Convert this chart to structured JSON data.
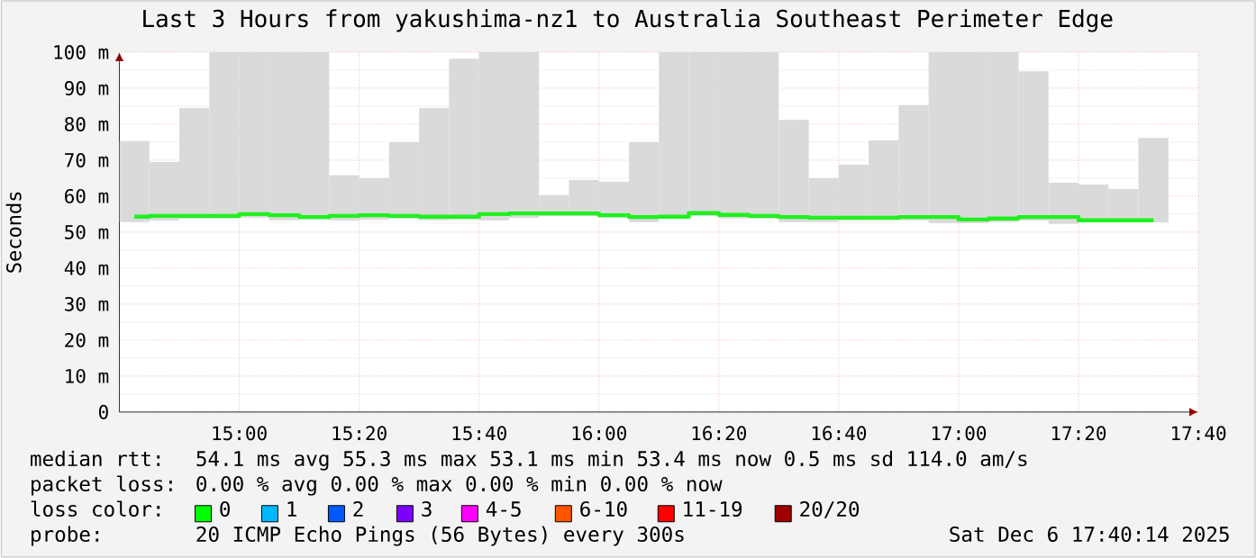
{
  "chart_data": {
    "type": "bar",
    "title": "Last 3 Hours from yakushima-nz1 to Australia Southeast Perimeter Edge",
    "ylabel": "Seconds",
    "x": [
      14.7083,
      14.7917,
      14.875,
      14.9583,
      15.0417,
      15.125,
      15.2083,
      15.2917,
      15.375,
      15.4583,
      15.5417,
      15.625,
      15.7083,
      15.7917,
      15.875,
      15.9583,
      16.0417,
      16.125,
      16.2083,
      16.2917,
      16.375,
      16.4583,
      16.5417,
      16.625,
      16.7083,
      16.7917,
      16.875,
      16.9583,
      17.0417,
      17.125,
      17.2083,
      17.2917,
      17.375,
      17.4583,
      17.5417
    ],
    "series": [
      {
        "color": "#dadada",
        "base": [
          52.8,
          53.2,
          53.7,
          53.7,
          54,
          53.3,
          53.5,
          53.2,
          53.5,
          53.7,
          53.3,
          53.5,
          53.2,
          54,
          54.5,
          54.5,
          54,
          52.8,
          53.7,
          54.5,
          53.8,
          53.7,
          52.8,
          52.8,
          53.2,
          53.3,
          53.3,
          52.5,
          52.5,
          52.8,
          53.2,
          52.3,
          52.7,
          52.7,
          52.7
        ],
        "values": [
          22.5,
          16.3,
          30.8,
          46.3,
          46,
          46.7,
          46.5,
          12.6,
          11.5,
          21.3,
          31.2,
          44.7,
          46.8,
          46,
          5.8,
          10,
          10,
          22.2,
          46.3,
          45.5,
          46.2,
          46.3,
          28.4,
          12.2,
          15.5,
          22.2,
          32,
          47.5,
          47.5,
          47.2,
          41.5,
          11.4,
          10.5,
          9.3,
          23.5
        ]
      },
      {
        "type": "step",
        "color": "#20f020",
        "values": [
          54.3,
          54.5,
          54.5,
          54.5,
          55,
          54.7,
          54.2,
          54.5,
          54.7,
          54.5,
          54.3,
          54.3,
          55,
          55.2,
          55.2,
          55.2,
          54.7,
          54.2,
          54.3,
          55.3,
          54.8,
          54.5,
          54.2,
          54,
          54,
          54,
          54.2,
          54.2,
          53.5,
          53.8,
          54.2,
          54.2,
          53.3,
          53.3,
          53.3
        ]
      }
    ],
    "xlim": [
      14.6667,
      17.6667
    ],
    "xticks": [
      {
        "value": 15,
        "label": "15:00"
      },
      {
        "value": 15.3333,
        "label": "15:20"
      },
      {
        "value": 15.6667,
        "label": "15:40"
      },
      {
        "value": 16,
        "label": "16:00"
      },
      {
        "value": 16.3333,
        "label": "16:20"
      },
      {
        "value": 16.6667,
        "label": "16:40"
      },
      {
        "value": 17,
        "label": "17:00"
      },
      {
        "value": 17.3333,
        "label": "17:20"
      },
      {
        "value": 17.6667,
        "label": "17:40"
      }
    ],
    "ylim": [
      0,
      100
    ],
    "yticks": [
      0,
      {
        "value": 10,
        "label": "10 m"
      },
      {
        "value": 20,
        "label": "20 m"
      },
      {
        "value": 30,
        "label": "30 m"
      },
      {
        "value": 40,
        "label": "40 m"
      },
      {
        "value": 50,
        "label": "50 m"
      },
      {
        "value": 60,
        "label": "60 m"
      },
      {
        "value": 70,
        "label": "70 m"
      },
      {
        "value": 80,
        "label": "80 m"
      },
      {
        "value": 90,
        "label": "90 m"
      },
      {
        "value": 100,
        "label": "100 m"
      }
    ],
    "grid": true,
    "annotations": [
      "median rtt:",
      "54.1 ms avg  55.3 ms max  53.1 ms min  53.4 ms now  0.5 ms sd  114.0   am/s",
      "packet loss:",
      "0.00 % avg  0.00 % max  0.00 % min  0.00 % now",
      "loss color:",
      "0",
      "1",
      "2",
      "3",
      "4-5",
      "6-10",
      "11-19",
      "20/20",
      "probe:",
      "20 ICMP Echo Pings (56 Bytes) every 300s",
      "Sat Dec  6 17:40:14 2025"
    ]
  }
}
